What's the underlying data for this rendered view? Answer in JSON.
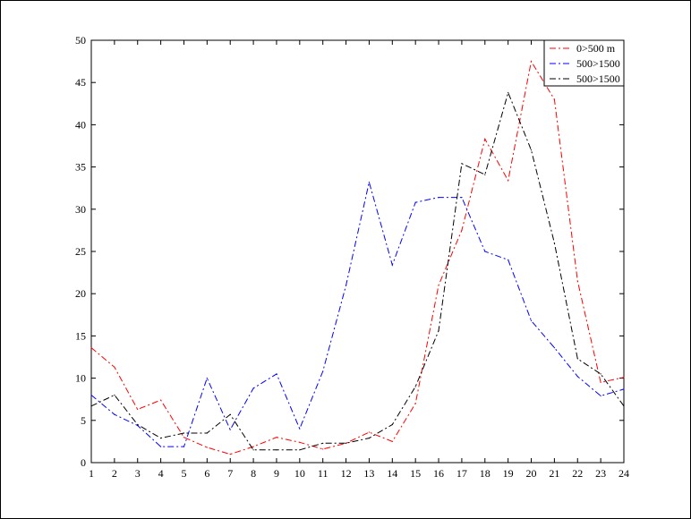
{
  "chart_data": {
    "type": "line",
    "title": "",
    "xlabel": "",
    "ylabel": "",
    "xlim": [
      1,
      24
    ],
    "ylim": [
      0,
      50
    ],
    "x": [
      1,
      2,
      3,
      4,
      5,
      6,
      7,
      8,
      9,
      10,
      11,
      12,
      13,
      14,
      15,
      16,
      17,
      18,
      19,
      20,
      21,
      22,
      23,
      24
    ],
    "xticks": [
      "1",
      "2",
      "3",
      "4",
      "5",
      "6",
      "7",
      "8",
      "9",
      "10",
      "11",
      "12",
      "13",
      "14",
      "15",
      "16",
      "17",
      "18",
      "19",
      "20",
      "21",
      "22",
      "23",
      "24"
    ],
    "yticks": [
      "0",
      "5",
      "10",
      "15",
      "20",
      "25",
      "30",
      "35",
      "40",
      "45",
      "50"
    ],
    "grid": false,
    "legend_position": "top-right",
    "series": [
      {
        "name": "0>500 m",
        "color": "#ff0000",
        "values": [
          13.6,
          11.3,
          6.3,
          7.4,
          3.0,
          1.8,
          1.0,
          1.9,
          3.0,
          2.4,
          1.6,
          2.3,
          3.6,
          2.5,
          7.0,
          21.0,
          27.5,
          38.3,
          33.4,
          47.5,
          43.0,
          21.5,
          9.5,
          10.1
        ]
      },
      {
        "name": "500>1500",
        "color": "#0000ff",
        "values": [
          8.0,
          5.7,
          4.4,
          1.9,
          1.9,
          10.0,
          3.9,
          8.8,
          10.5,
          4.0,
          10.8,
          21.0,
          33.2,
          23.4,
          30.8,
          31.4,
          31.4,
          25.0,
          24.0,
          16.8,
          13.6,
          10.2,
          7.9,
          8.7
        ]
      },
      {
        "name": "500>1500",
        "color": "#000000",
        "values": [
          6.7,
          8.0,
          4.5,
          2.9,
          3.5,
          3.5,
          5.7,
          1.5,
          1.5,
          1.5,
          2.3,
          2.3,
          2.9,
          4.5,
          9.0,
          15.6,
          35.4,
          34.1,
          43.8,
          37.0,
          26.0,
          12.3,
          10.5,
          6.7
        ]
      }
    ]
  }
}
